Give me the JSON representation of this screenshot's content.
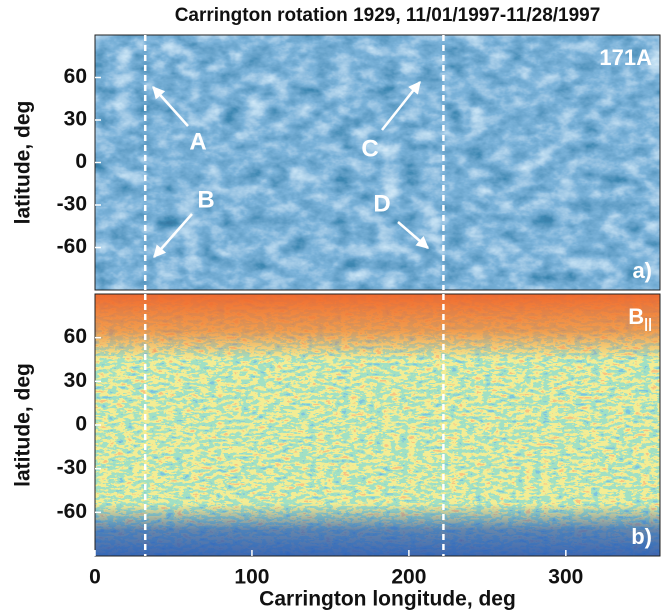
{
  "chart_data": [
    {
      "type": "image",
      "title": "Carrington rotation 1929, 11/01/1997-11/28/1997",
      "ylabel": "latitude, deg",
      "xlim": [
        0,
        360
      ],
      "ylim": [
        -90,
        90
      ],
      "yticks": [
        60,
        30,
        0,
        -30,
        -60
      ],
      "vlines": [
        32,
        222
      ],
      "panel_label": "171A",
      "panel_tag": "a)",
      "colormap": "blues",
      "annotations": [
        "A",
        "B",
        "C",
        "D"
      ]
    },
    {
      "type": "image",
      "xlabel": "Carrington longitude, deg",
      "ylabel": "latitude, deg",
      "xlim": [
        0,
        360
      ],
      "ylim": [
        -90,
        90
      ],
      "xticks": [
        0,
        100,
        200,
        300
      ],
      "yticks": [
        60,
        30,
        0,
        -30,
        -60
      ],
      "vlines": [
        32,
        222
      ],
      "panel_label": "B",
      "panel_label_sub": "||",
      "panel_tag": "b)",
      "colormap": "magnetogram"
    }
  ]
}
